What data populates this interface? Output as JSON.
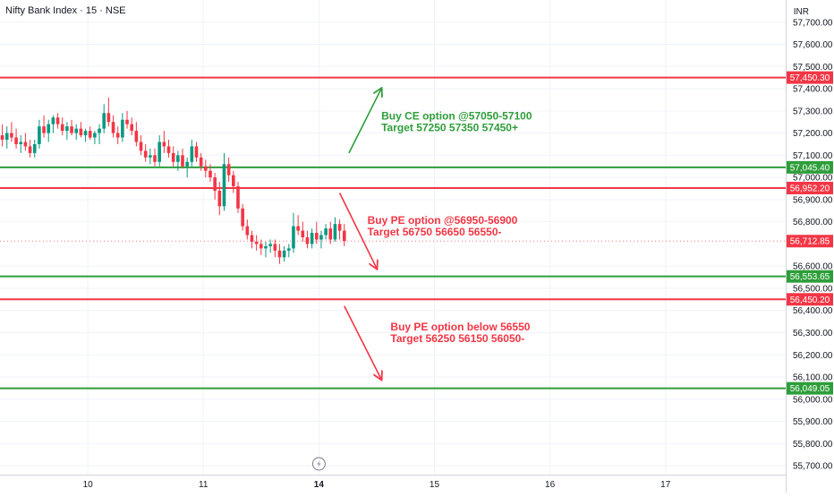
{
  "header": {
    "symbol": "Nifty Bank Index · 15 · NSE",
    "currency": "INR"
  },
  "colors": {
    "up": "#089981",
    "down": "#f23645",
    "resistance": "#f23645",
    "support": "#2e9e3a",
    "grid": "#f0f3fa",
    "axis_text": "#131722"
  },
  "chart_data": {
    "type": "candlestick",
    "y_range": [
      55660,
      57800
    ],
    "y_ticks": [
      {
        "value": 57700,
        "label": "57,700.00"
      },
      {
        "value": 57600,
        "label": "57,600.00"
      },
      {
        "value": 57500,
        "label": "57,500.00"
      },
      {
        "value": 57400,
        "label": "57,400.00"
      },
      {
        "value": 57300,
        "label": "57,300.00"
      },
      {
        "value": 57200,
        "label": "57,200.00"
      },
      {
        "value": 57100,
        "label": "57,100.00"
      },
      {
        "value": 57000,
        "label": "57,000.00"
      },
      {
        "value": 56900,
        "label": "56,900.00"
      },
      {
        "value": 56800,
        "label": "56,800.00"
      },
      {
        "value": 56600,
        "label": "56,600.00"
      },
      {
        "value": 56500,
        "label": "56,500.00"
      },
      {
        "value": 56400,
        "label": "56,400.00"
      },
      {
        "value": 56300,
        "label": "56,300.00"
      },
      {
        "value": 56200,
        "label": "56,200.00"
      },
      {
        "value": 56100,
        "label": "56,100.00"
      },
      {
        "value": 56000,
        "label": "56,000.00"
      },
      {
        "value": 55900,
        "label": "55,900.00"
      },
      {
        "value": 55800,
        "label": "55,800.00"
      },
      {
        "value": 55700,
        "label": "55,700.00"
      }
    ],
    "x_labels": [
      {
        "label": "10",
        "bar": 18.5,
        "bold": false
      },
      {
        "label": "11",
        "bar": 43.5,
        "bold": false
      },
      {
        "label": "14",
        "bar": 68.5,
        "bold": true
      },
      {
        "label": "15",
        "bar": 93.5,
        "bold": false
      },
      {
        "label": "16",
        "bar": 118.5,
        "bold": false
      },
      {
        "label": "17",
        "bar": 143.5,
        "bold": false
      }
    ],
    "bar_count": 170,
    "levels": [
      {
        "value": 57450.3,
        "label": "57,450.30",
        "role": "resistance"
      },
      {
        "value": 57045.4,
        "label": "57,045.40",
        "role": "support"
      },
      {
        "value": 56952.2,
        "label": "56,952.20",
        "role": "resistance"
      },
      {
        "value": 56553.65,
        "label": "56,553.65",
        "role": "support"
      },
      {
        "value": 56450.2,
        "label": "56,450.20",
        "role": "resistance"
      },
      {
        "value": 56049.05,
        "label": "56,049.05",
        "role": "support"
      }
    ],
    "last_price": {
      "value": 56712.85,
      "label": "56,712.85"
    },
    "annotations": [
      {
        "lines": [
          "Buy CE option @57050-57100",
          "Target 57250 57350 57450+"
        ],
        "color": "support",
        "arrow": {
          "from": [
            75,
            57110
          ],
          "to": [
            82,
            57400
          ]
        },
        "text_at": [
          82,
          57260
        ]
      },
      {
        "lines": [
          "Buy PE option @56950-56900",
          "Target 56750 56650 56550-"
        ],
        "color": "resistance",
        "arrow": {
          "from": [
            73,
            56930
          ],
          "to": [
            81,
            56590
          ]
        },
        "text_at": [
          79,
          56790
        ]
      },
      {
        "lines": [
          "Buy PE option below 56550",
          "Target 56250 56150 56050-"
        ],
        "color": "resistance",
        "arrow": {
          "from": [
            74,
            56420
          ],
          "to": [
            82,
            56090
          ]
        },
        "text_at": [
          84,
          56310
        ]
      }
    ],
    "candles": [
      {
        "o": 57190,
        "h": 57240,
        "l": 57140,
        "c": 57170
      },
      {
        "o": 57170,
        "h": 57230,
        "l": 57130,
        "c": 57200
      },
      {
        "o": 57200,
        "h": 57250,
        "l": 57160,
        "c": 57180
      },
      {
        "o": 57180,
        "h": 57220,
        "l": 57130,
        "c": 57150
      },
      {
        "o": 57150,
        "h": 57190,
        "l": 57110,
        "c": 57160
      },
      {
        "o": 57160,
        "h": 57200,
        "l": 57120,
        "c": 57140
      },
      {
        "o": 57140,
        "h": 57170,
        "l": 57090,
        "c": 57110
      },
      {
        "o": 57110,
        "h": 57170,
        "l": 57090,
        "c": 57150
      },
      {
        "o": 57150,
        "h": 57260,
        "l": 57130,
        "c": 57230
      },
      {
        "o": 57230,
        "h": 57280,
        "l": 57180,
        "c": 57200
      },
      {
        "o": 57200,
        "h": 57260,
        "l": 57160,
        "c": 57240
      },
      {
        "o": 57240,
        "h": 57280,
        "l": 57200,
        "c": 57270
      },
      {
        "o": 57270,
        "h": 57290,
        "l": 57220,
        "c": 57240
      },
      {
        "o": 57240,
        "h": 57270,
        "l": 57190,
        "c": 57210
      },
      {
        "o": 57210,
        "h": 57250,
        "l": 57170,
        "c": 57230
      },
      {
        "o": 57230,
        "h": 57260,
        "l": 57190,
        "c": 57200
      },
      {
        "o": 57200,
        "h": 57240,
        "l": 57170,
        "c": 57220
      },
      {
        "o": 57220,
        "h": 57250,
        "l": 57180,
        "c": 57190
      },
      {
        "o": 57190,
        "h": 57220,
        "l": 57160,
        "c": 57210
      },
      {
        "o": 57210,
        "h": 57230,
        "l": 57170,
        "c": 57180
      },
      {
        "o": 57180,
        "h": 57210,
        "l": 57150,
        "c": 57200
      },
      {
        "o": 57200,
        "h": 57240,
        "l": 57150,
        "c": 57220
      },
      {
        "o": 57220,
        "h": 57330,
        "l": 57200,
        "c": 57290
      },
      {
        "o": 57290,
        "h": 57360,
        "l": 57230,
        "c": 57250
      },
      {
        "o": 57250,
        "h": 57280,
        "l": 57180,
        "c": 57200
      },
      {
        "o": 57200,
        "h": 57230,
        "l": 57150,
        "c": 57180
      },
      {
        "o": 57180,
        "h": 57290,
        "l": 57160,
        "c": 57260
      },
      {
        "o": 57260,
        "h": 57300,
        "l": 57220,
        "c": 57240
      },
      {
        "o": 57240,
        "h": 57270,
        "l": 57190,
        "c": 57210
      },
      {
        "o": 57210,
        "h": 57250,
        "l": 57140,
        "c": 57160
      },
      {
        "o": 57160,
        "h": 57190,
        "l": 57100,
        "c": 57120
      },
      {
        "o": 57120,
        "h": 57150,
        "l": 57070,
        "c": 57090
      },
      {
        "o": 57090,
        "h": 57130,
        "l": 57060,
        "c": 57100
      },
      {
        "o": 57100,
        "h": 57130,
        "l": 57050,
        "c": 57070
      },
      {
        "o": 57070,
        "h": 57190,
        "l": 57050,
        "c": 57160
      },
      {
        "o": 57160,
        "h": 57210,
        "l": 57110,
        "c": 57140
      },
      {
        "o": 57140,
        "h": 57170,
        "l": 57090,
        "c": 57110
      },
      {
        "o": 57110,
        "h": 57140,
        "l": 57050,
        "c": 57070
      },
      {
        "o": 57070,
        "h": 57120,
        "l": 57030,
        "c": 57100
      },
      {
        "o": 57100,
        "h": 57130,
        "l": 57040,
        "c": 57050
      },
      {
        "o": 57050,
        "h": 57090,
        "l": 57000,
        "c": 57070
      },
      {
        "o": 57070,
        "h": 57170,
        "l": 57050,
        "c": 57140
      },
      {
        "o": 57140,
        "h": 57160,
        "l": 57070,
        "c": 57090
      },
      {
        "o": 57090,
        "h": 57110,
        "l": 57030,
        "c": 57050
      },
      {
        "o": 57050,
        "h": 57080,
        "l": 57000,
        "c": 57030
      },
      {
        "o": 57030,
        "h": 57060,
        "l": 56980,
        "c": 57000
      },
      {
        "o": 57000,
        "h": 57020,
        "l": 56900,
        "c": 56940
      },
      {
        "o": 56940,
        "h": 56980,
        "l": 56830,
        "c": 56870
      },
      {
        "o": 56870,
        "h": 57110,
        "l": 56850,
        "c": 57060
      },
      {
        "o": 57060,
        "h": 57090,
        "l": 56980,
        "c": 57010
      },
      {
        "o": 57010,
        "h": 57030,
        "l": 56930,
        "c": 56960
      },
      {
        "o": 56960,
        "h": 56980,
        "l": 56840,
        "c": 56860
      },
      {
        "o": 56860,
        "h": 56880,
        "l": 56760,
        "c": 56780
      },
      {
        "o": 56780,
        "h": 56810,
        "l": 56720,
        "c": 56740
      },
      {
        "o": 56740,
        "h": 56760,
        "l": 56680,
        "c": 56710
      },
      {
        "o": 56710,
        "h": 56740,
        "l": 56670,
        "c": 56700
      },
      {
        "o": 56700,
        "h": 56720,
        "l": 56650,
        "c": 56680
      },
      {
        "o": 56680,
        "h": 56710,
        "l": 56640,
        "c": 56690
      },
      {
        "o": 56690,
        "h": 56720,
        "l": 56660,
        "c": 56700
      },
      {
        "o": 56700,
        "h": 56720,
        "l": 56640,
        "c": 56670
      },
      {
        "o": 56670,
        "h": 56700,
        "l": 56610,
        "c": 56640
      },
      {
        "o": 56640,
        "h": 56690,
        "l": 56620,
        "c": 56670
      },
      {
        "o": 56670,
        "h": 56700,
        "l": 56640,
        "c": 56680
      },
      {
        "o": 56680,
        "h": 56840,
        "l": 56660,
        "c": 56780
      },
      {
        "o": 56780,
        "h": 56830,
        "l": 56740,
        "c": 56760
      },
      {
        "o": 56760,
        "h": 56800,
        "l": 56710,
        "c": 56730
      },
      {
        "o": 56730,
        "h": 56760,
        "l": 56680,
        "c": 56700
      },
      {
        "o": 56700,
        "h": 56770,
        "l": 56680,
        "c": 56750
      },
      {
        "o": 56750,
        "h": 56800,
        "l": 56700,
        "c": 56720
      },
      {
        "o": 56720,
        "h": 56760,
        "l": 56680,
        "c": 56740
      },
      {
        "o": 56740,
        "h": 56790,
        "l": 56720,
        "c": 56770
      },
      {
        "o": 56770,
        "h": 56800,
        "l": 56700,
        "c": 56720
      },
      {
        "o": 56720,
        "h": 56820,
        "l": 56710,
        "c": 56790
      },
      {
        "o": 56790,
        "h": 56810,
        "l": 56720,
        "c": 56760
      },
      {
        "o": 56760,
        "h": 56790,
        "l": 56690,
        "c": 56713
      }
    ]
  }
}
